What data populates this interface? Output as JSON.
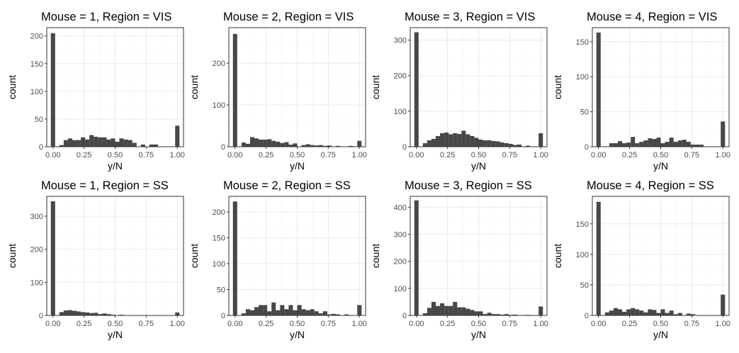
{
  "chart_data": [
    {
      "type": "bar",
      "title": "Mouse = 1, Region = VIS",
      "xlabel": "y/N",
      "ylabel": "count",
      "xlim": [
        -0.05,
        1.05
      ],
      "ylim": [
        0,
        215
      ],
      "xticks": [
        0,
        0.25,
        0.5,
        0.75,
        1
      ],
      "xtick_labels": [
        "0.00",
        "0.25",
        "0.50",
        "0.75",
        "1.00"
      ],
      "yticks": [
        0,
        50,
        100,
        150,
        200
      ],
      "grid": true,
      "bin_width": 0.0345,
      "x": [
        0,
        0.0345,
        0.069,
        0.1034,
        0.1379,
        0.1724,
        0.2069,
        0.2414,
        0.2759,
        0.3103,
        0.3448,
        0.3793,
        0.4138,
        0.4483,
        0.4828,
        0.5172,
        0.5517,
        0.5862,
        0.6207,
        0.6552,
        0.6897,
        0.7241,
        0.7586,
        0.7931,
        0.8276,
        0.8621,
        0.8966,
        0.931,
        0.9655,
        1
      ],
      "values": [
        205,
        0,
        3,
        12,
        15,
        12,
        12,
        17,
        13,
        21,
        18,
        17,
        17,
        13,
        15,
        9,
        15,
        13,
        12,
        7,
        0,
        4,
        0,
        4,
        4,
        0,
        0,
        0,
        0,
        38
      ]
    },
    {
      "type": "bar",
      "title": "Mouse = 2, Region = VIS",
      "xlabel": "y/N",
      "ylabel": "count",
      "xlim": [
        -0.05,
        1.05
      ],
      "ylim": [
        0,
        285
      ],
      "xticks": [
        0,
        0.25,
        0.5,
        0.75,
        1
      ],
      "xtick_labels": [
        "0.00",
        "0.25",
        "0.50",
        "0.75",
        "1.00"
      ],
      "yticks": [
        0,
        100,
        200
      ],
      "grid": true,
      "bin_width": 0.0345,
      "x": [
        0,
        0.0345,
        0.069,
        0.1034,
        0.1379,
        0.1724,
        0.2069,
        0.2414,
        0.2759,
        0.3103,
        0.3448,
        0.3793,
        0.4138,
        0.4483,
        0.4828,
        0.5172,
        0.5517,
        0.5862,
        0.6207,
        0.6552,
        0.6897,
        0.7241,
        0.7586,
        0.7931,
        0.8276,
        0.8621,
        0.8966,
        0.931,
        0.9655,
        1
      ],
      "values": [
        270,
        0,
        10,
        7,
        23,
        20,
        17,
        17,
        18,
        14,
        12,
        9,
        11,
        5,
        8,
        0,
        4,
        6,
        4,
        3,
        4,
        2,
        3,
        0,
        2,
        0,
        0,
        2,
        0,
        14
      ]
    },
    {
      "type": "bar",
      "title": "Mouse = 3, Region = VIS",
      "xlabel": "y/N",
      "ylabel": "count",
      "xlim": [
        -0.05,
        1.05
      ],
      "ylim": [
        0,
        335
      ],
      "xticks": [
        0,
        0.25,
        0.5,
        0.75,
        1
      ],
      "xtick_labels": [
        "0.00",
        "0.25",
        "0.50",
        "0.75",
        "1.00"
      ],
      "yticks": [
        0,
        100,
        200,
        300
      ],
      "grid": true,
      "bin_width": 0.0345,
      "x": [
        0,
        0.0345,
        0.069,
        0.1034,
        0.1379,
        0.1724,
        0.2069,
        0.2414,
        0.2759,
        0.3103,
        0.3448,
        0.3793,
        0.4138,
        0.4483,
        0.4828,
        0.5172,
        0.5517,
        0.5862,
        0.6207,
        0.6552,
        0.6897,
        0.7241,
        0.7586,
        0.7931,
        0.8276,
        0.8621,
        0.8966,
        0.931,
        0.9655,
        1
      ],
      "values": [
        322,
        0,
        10,
        18,
        22,
        30,
        38,
        40,
        35,
        38,
        36,
        45,
        35,
        30,
        25,
        20,
        18,
        18,
        16,
        15,
        12,
        10,
        8,
        5,
        6,
        0,
        3,
        0,
        0,
        38
      ]
    },
    {
      "type": "bar",
      "title": "Mouse = 4, Region = VIS",
      "xlabel": "y/N",
      "ylabel": "count",
      "xlim": [
        -0.05,
        1.05
      ],
      "ylim": [
        0,
        170
      ],
      "xticks": [
        0,
        0.25,
        0.5,
        0.75,
        1
      ],
      "xtick_labels": [
        "0.00",
        "0.25",
        "0.50",
        "0.75",
        "1.00"
      ],
      "yticks": [
        0,
        50,
        100,
        150
      ],
      "grid": true,
      "bin_width": 0.0345,
      "x": [
        0,
        0.0345,
        0.069,
        0.1034,
        0.1379,
        0.1724,
        0.2069,
        0.2414,
        0.2759,
        0.3103,
        0.3448,
        0.3793,
        0.4138,
        0.4483,
        0.4828,
        0.5172,
        0.5517,
        0.5862,
        0.6207,
        0.6552,
        0.6897,
        0.7241,
        0.7586,
        0.7931,
        0.8276,
        0.8621,
        0.8966,
        0.931,
        0.9655,
        1
      ],
      "values": [
        163,
        0,
        0,
        5,
        5,
        8,
        5,
        6,
        14,
        5,
        7,
        9,
        12,
        11,
        13,
        5,
        7,
        13,
        7,
        9,
        10,
        7,
        3,
        3,
        3,
        0,
        0,
        0,
        0,
        36
      ]
    },
    {
      "type": "bar",
      "title": "Mouse = 1, Region = SS",
      "xlabel": "y/N",
      "ylabel": "count",
      "xlim": [
        -0.05,
        1.05
      ],
      "ylim": [
        0,
        360
      ],
      "xticks": [
        0,
        0.25,
        0.5,
        0.75,
        1
      ],
      "xtick_labels": [
        "0.00",
        "0.25",
        "0.50",
        "0.75",
        "1.00"
      ],
      "yticks": [
        0,
        100,
        200,
        300
      ],
      "grid": true,
      "bin_width": 0.0345,
      "x": [
        0,
        0.0345,
        0.069,
        0.1034,
        0.1379,
        0.1724,
        0.2069,
        0.2414,
        0.2759,
        0.3103,
        0.3448,
        0.3793,
        0.4138,
        0.4483,
        0.4828,
        0.5172,
        0.5517,
        0.5862,
        0.6207,
        0.6552,
        0.6897,
        0.7241,
        0.7586,
        0.7931,
        0.8276,
        0.8621,
        0.8966,
        0.931,
        0.9655,
        1
      ],
      "values": [
        345,
        0,
        10,
        15,
        16,
        14,
        12,
        10,
        9,
        7,
        8,
        4,
        6,
        4,
        2,
        1,
        2,
        1,
        1,
        0,
        0,
        0,
        0,
        0,
        0,
        0,
        0,
        0,
        0,
        9
      ]
    },
    {
      "type": "bar",
      "title": "Mouse = 2, Region = SS",
      "xlabel": "y/N",
      "ylabel": "count",
      "xlim": [
        -0.05,
        1.05
      ],
      "ylim": [
        0,
        230
      ],
      "xticks": [
        0,
        0.25,
        0.5,
        0.75,
        1
      ],
      "xtick_labels": [
        "0.00",
        "0.25",
        "0.50",
        "0.75",
        "1.00"
      ],
      "yticks": [
        0,
        50,
        100,
        150,
        200
      ],
      "grid": true,
      "bin_width": 0.0345,
      "x": [
        0,
        0.0345,
        0.069,
        0.1034,
        0.1379,
        0.1724,
        0.2069,
        0.2414,
        0.2759,
        0.3103,
        0.3448,
        0.3793,
        0.4138,
        0.4483,
        0.4828,
        0.5172,
        0.5517,
        0.5862,
        0.6207,
        0.6552,
        0.6897,
        0.7241,
        0.7586,
        0.7931,
        0.8276,
        0.8621,
        0.8966,
        0.931,
        0.9655,
        1
      ],
      "values": [
        220,
        0,
        4,
        12,
        10,
        16,
        20,
        20,
        8,
        25,
        10,
        20,
        12,
        20,
        10,
        20,
        12,
        10,
        12,
        8,
        4,
        8,
        2,
        3,
        2,
        0,
        2,
        0,
        0,
        20
      ]
    },
    {
      "type": "bar",
      "title": "Mouse = 3, Region = SS",
      "xlabel": "y/N",
      "ylabel": "count",
      "xlim": [
        -0.05,
        1.05
      ],
      "ylim": [
        0,
        440
      ],
      "xticks": [
        0,
        0.25,
        0.5,
        0.75,
        1
      ],
      "xtick_labels": [
        "0.00",
        "0.25",
        "0.50",
        "0.75",
        "1.00"
      ],
      "yticks": [
        0,
        100,
        200,
        300,
        400
      ],
      "grid": true,
      "bin_width": 0.0345,
      "x": [
        0,
        0.0345,
        0.069,
        0.1034,
        0.1379,
        0.1724,
        0.2069,
        0.2414,
        0.2759,
        0.3103,
        0.3448,
        0.3793,
        0.4138,
        0.4483,
        0.4828,
        0.5172,
        0.5517,
        0.5862,
        0.6207,
        0.6552,
        0.6897,
        0.7241,
        0.7586,
        0.7931,
        0.8276,
        0.8621,
        0.8966,
        0.931,
        0.9655,
        1
      ],
      "values": [
        425,
        0,
        8,
        28,
        50,
        35,
        45,
        35,
        35,
        50,
        30,
        30,
        25,
        20,
        15,
        15,
        5,
        10,
        5,
        5,
        3,
        5,
        2,
        3,
        0,
        0,
        2,
        0,
        0,
        33
      ]
    },
    {
      "type": "bar",
      "title": "Mouse = 4, Region = SS",
      "xlabel": "y/N",
      "ylabel": "count",
      "xlim": [
        -0.05,
        1.05
      ],
      "ylim": [
        0,
        195
      ],
      "xticks": [
        0,
        0.25,
        0.5,
        0.75,
        1
      ],
      "xtick_labels": [
        "0.00",
        "0.25",
        "0.50",
        "0.75",
        "1.00"
      ],
      "yticks": [
        0,
        50,
        100,
        150
      ],
      "grid": true,
      "bin_width": 0.0345,
      "x": [
        0,
        0.0345,
        0.069,
        0.1034,
        0.1379,
        0.1724,
        0.2069,
        0.2414,
        0.2759,
        0.3103,
        0.3448,
        0.3793,
        0.4138,
        0.4483,
        0.4828,
        0.5172,
        0.5517,
        0.5862,
        0.6207,
        0.6552,
        0.6897,
        0.7241,
        0.7586,
        0.7931,
        0.8276,
        0.8621,
        0.8966,
        0.931,
        0.9655,
        1
      ],
      "values": [
        186,
        0,
        5,
        8,
        12,
        10,
        6,
        10,
        12,
        10,
        8,
        5,
        10,
        9,
        4,
        10,
        4,
        8,
        2,
        4,
        0,
        3,
        2,
        0,
        0,
        0,
        0,
        0,
        0,
        34
      ]
    }
  ],
  "colors": {
    "bar": "#474747",
    "panel_border": "#333333",
    "grid_major": "#ebebeb",
    "grid_minor": "#f5f5f5",
    "tick_text": "#4d4d4d",
    "label_text": "#000000"
  }
}
